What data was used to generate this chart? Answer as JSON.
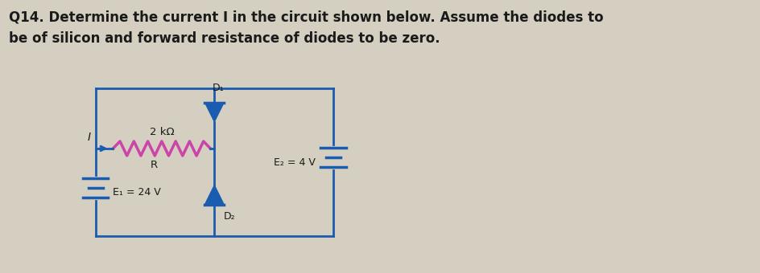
{
  "title_line1": "Q14. Determine the current I in the circuit shown below. Assume the diodes to",
  "title_line2": "be of silicon and forward resistance of diodes to be zero.",
  "title_fontsize": 12.0,
  "title_color": "#1a1a1a",
  "background_color": "#d4cfc0",
  "circuit_color": "#1a5cb0",
  "resistor_color": "#cc44aa",
  "circuit_linewidth": 2.0,
  "label_R": "2 kΩ",
  "label_R2": "R",
  "label_D1": "D₁",
  "label_D2": "D₂",
  "label_E1": "E₁ = 24 V",
  "label_E2": "E₂ = 4 V",
  "label_I": "I",
  "xL": 1.2,
  "xM": 2.7,
  "xR": 4.2,
  "yTop": 2.3,
  "yMid": 1.55,
  "yBot": 0.45
}
